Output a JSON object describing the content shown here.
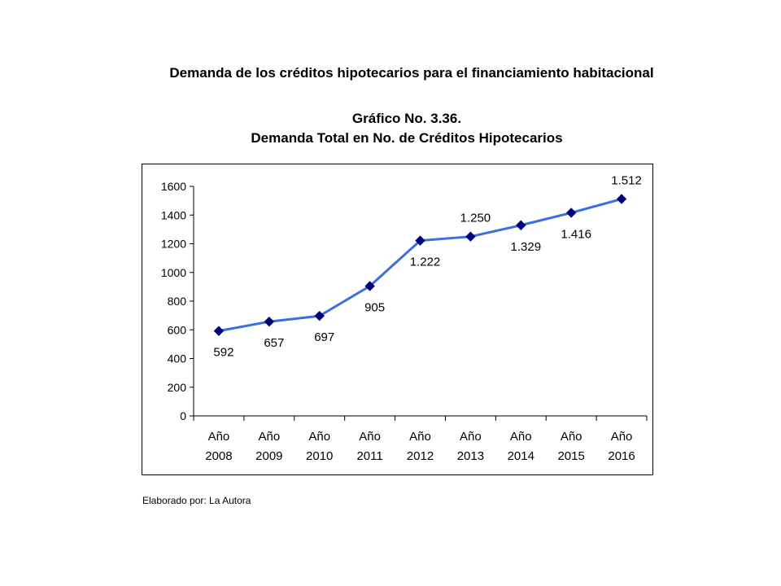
{
  "header": {
    "title": "Demanda de los créditos hipotecarios para el financiamiento habitacional",
    "chart_number": "Gráfico No. 3.36.",
    "chart_subtitle": "Demanda  Total en No. de Créditos Hipotecarios"
  },
  "footer": {
    "credit": "Elaborado por: La Autora"
  },
  "chart_data": {
    "type": "line",
    "categories": [
      [
        "Año",
        "2008"
      ],
      [
        "Año",
        "2009"
      ],
      [
        "Año",
        "2010"
      ],
      [
        "Año",
        "2011"
      ],
      [
        "Año",
        "2012"
      ],
      [
        "Año",
        "2013"
      ],
      [
        "Año",
        "2014"
      ],
      [
        "Año",
        "2015"
      ],
      [
        "Año",
        "2016"
      ]
    ],
    "values": [
      592,
      657,
      697,
      905,
      1222,
      1250,
      1329,
      1416,
      1512
    ],
    "data_labels": [
      "592",
      "657",
      "697",
      "905",
      "1.222",
      "1.250",
      "1.329",
      "1.416",
      "1.512"
    ],
    "label_positions": [
      "below",
      "below",
      "below",
      "below",
      "below",
      "above",
      "below",
      "below",
      "above"
    ],
    "ylim": [
      0,
      1600
    ],
    "yticks": [
      0,
      200,
      400,
      600,
      800,
      1000,
      1200,
      1400,
      1600
    ],
    "grid": false,
    "legend": "none",
    "colors": {
      "line": "#3b6fe0",
      "marker": "#00007a",
      "axis": "#000000"
    }
  }
}
